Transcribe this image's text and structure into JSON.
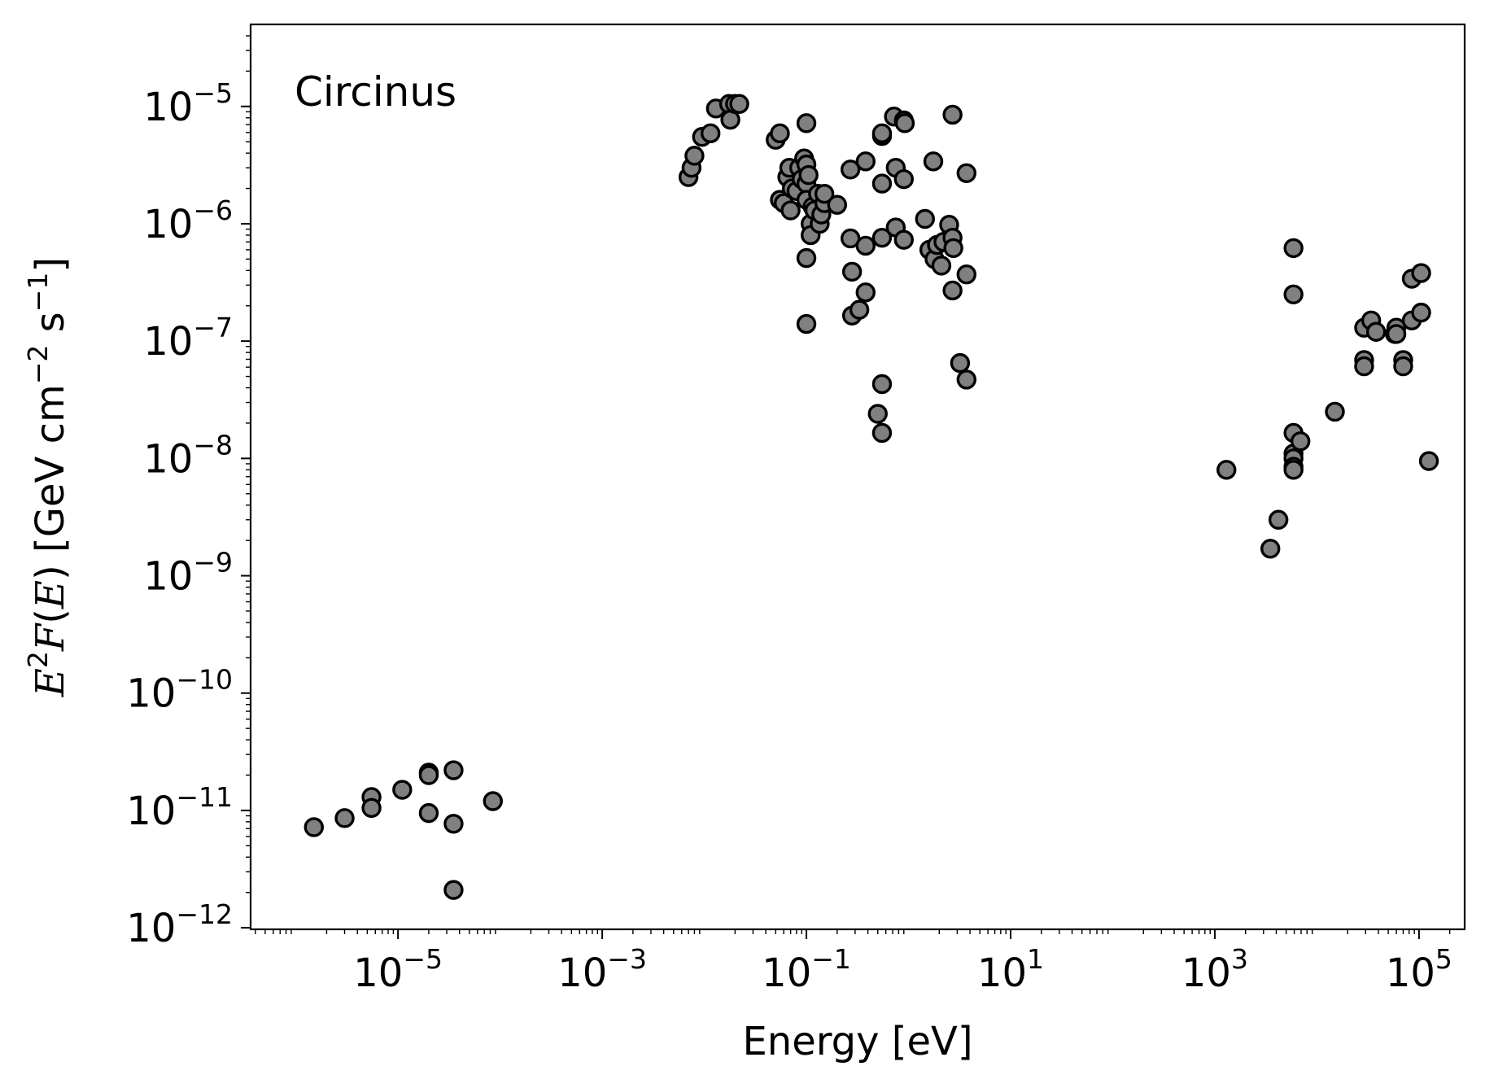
{
  "chart_data": {
    "type": "scatter",
    "annotation": "Circinus",
    "xlabel": "Energy [eV]",
    "ylabel": "E²F(E) [GeV cm⁻² s⁻¹]",
    "xscale": "log",
    "yscale": "log",
    "xlim": [
      3.6e-07,
      280000.0
    ],
    "ylim": [
      9.7e-13,
      5e-05
    ],
    "xticks": [
      {
        "base": "10",
        "exp": "−5",
        "value": 1e-05
      },
      {
        "base": "10",
        "exp": "−3",
        "value": 0.001
      },
      {
        "base": "10",
        "exp": "−1",
        "value": 0.1
      },
      {
        "base": "10",
        "exp": "1",
        "value": 10.0
      },
      {
        "base": "10",
        "exp": "3",
        "value": 1000.0
      },
      {
        "base": "10",
        "exp": "5",
        "value": 100000.0
      }
    ],
    "yticks": [
      {
        "base": "10",
        "exp": "−12",
        "value": 1e-12
      },
      {
        "base": "10",
        "exp": "−11",
        "value": 1e-11
      },
      {
        "base": "10",
        "exp": "−10",
        "value": 1e-10
      },
      {
        "base": "10",
        "exp": "−9",
        "value": 1e-09
      },
      {
        "base": "10",
        "exp": "−8",
        "value": 1e-08
      },
      {
        "base": "10",
        "exp": "−7",
        "value": 1e-07
      },
      {
        "base": "10",
        "exp": "−6",
        "value": 1e-06
      },
      {
        "base": "10",
        "exp": "−5",
        "value": 1e-05
      }
    ],
    "grid": false,
    "marker_color": "#808080",
    "marker_edge": "#000000",
    "points": [
      [
        1.5e-06,
        7.2e-12
      ],
      [
        3e-06,
        8.6e-12
      ],
      [
        5.5e-06,
        1.3e-11
      ],
      [
        5.5e-06,
        1.05e-11
      ],
      [
        1.1e-05,
        1.5e-11
      ],
      [
        2e-05,
        2.1e-11
      ],
      [
        2e-05,
        2e-11
      ],
      [
        2e-05,
        9.5e-12
      ],
      [
        3.5e-05,
        2.2e-11
      ],
      [
        3.5e-05,
        7.7e-12
      ],
      [
        3.5e-05,
        2.1e-12
      ],
      [
        8.5e-05,
        1.2e-11
      ],
      [
        0.007,
        2.5e-06
      ],
      [
        0.0075,
        3e-06
      ],
      [
        0.008,
        3.8e-06
      ],
      [
        0.0095,
        5.5e-06
      ],
      [
        0.0115,
        5.9e-06
      ],
      [
        0.013,
        9.6e-06
      ],
      [
        0.0175,
        1.05e-05
      ],
      [
        0.018,
        7.7e-06
      ],
      [
        0.02,
        1.05e-05
      ],
      [
        0.022,
        1.05e-05
      ],
      [
        0.05,
        5.2e-06
      ],
      [
        0.055,
        5.9e-06
      ],
      [
        0.055,
        1.6e-06
      ],
      [
        0.06,
        1.5e-06
      ],
      [
        0.065,
        2.5e-06
      ],
      [
        0.068,
        3e-06
      ],
      [
        0.07,
        1.3e-06
      ],
      [
        0.072,
        2e-06
      ],
      [
        0.08,
        1.9e-06
      ],
      [
        0.085,
        3e-06
      ],
      [
        0.09,
        2.4e-06
      ],
      [
        0.095,
        3.6e-06
      ],
      [
        0.1,
        3.2e-06
      ],
      [
        0.1,
        2.2e-06
      ],
      [
        0.1,
        7.2e-06
      ],
      [
        0.1,
        1.6e-06
      ],
      [
        0.1,
        5.1e-07
      ],
      [
        0.1,
        1.4e-07
      ],
      [
        0.105,
        2.6e-06
      ],
      [
        0.11,
        1e-06
      ],
      [
        0.11,
        8e-07
      ],
      [
        0.115,
        1.4e-06
      ],
      [
        0.12,
        1.3e-06
      ],
      [
        0.13,
        1.8e-06
      ],
      [
        0.135,
        1e-06
      ],
      [
        0.14,
        1.2e-06
      ],
      [
        0.15,
        1.5e-06
      ],
      [
        0.15,
        1.8e-06
      ],
      [
        0.2,
        1.45e-06
      ],
      [
        0.27,
        2.9e-06
      ],
      [
        0.27,
        7.5e-07
      ],
      [
        0.28,
        3.9e-07
      ],
      [
        0.28,
        1.65e-07
      ],
      [
        0.33,
        1.85e-07
      ],
      [
        0.38,
        3.4e-06
      ],
      [
        0.38,
        6.5e-07
      ],
      [
        0.38,
        2.6e-07
      ],
      [
        0.5,
        2.4e-08
      ],
      [
        0.55,
        4.3e-08
      ],
      [
        0.55,
        1.65e-08
      ],
      [
        0.55,
        5.6e-06
      ],
      [
        0.55,
        5.9e-06
      ],
      [
        0.55,
        2.2e-06
      ],
      [
        0.55,
        7.6e-07
      ],
      [
        0.72,
        8.2e-06
      ],
      [
        0.75,
        3e-06
      ],
      [
        0.75,
        9.3e-07
      ],
      [
        0.9,
        7.6e-06
      ],
      [
        0.92,
        7.2e-06
      ],
      [
        0.9,
        2.4e-06
      ],
      [
        0.9,
        7.3e-07
      ],
      [
        1.45,
        1.1e-06
      ],
      [
        1.6,
        6e-07
      ],
      [
        1.75,
        3.4e-06
      ],
      [
        1.8,
        5e-07
      ],
      [
        1.9,
        6.6e-07
      ],
      [
        2.1,
        4.4e-07
      ],
      [
        2.2,
        7e-07
      ],
      [
        2.5,
        9.8e-07
      ],
      [
        2.7,
        8.5e-06
      ],
      [
        2.7,
        7.6e-07
      ],
      [
        2.75,
        6.2e-07
      ],
      [
        2.7,
        2.7e-07
      ],
      [
        3.2,
        6.5e-08
      ],
      [
        3.7,
        4.7e-08
      ],
      [
        3.7,
        2.7e-06
      ],
      [
        3.7,
        3.7e-07
      ],
      [
        1300,
        8e-09
      ],
      [
        3500,
        1.7e-09
      ],
      [
        4200,
        3e-09
      ],
      [
        5900,
        6.2e-07
      ],
      [
        5900,
        2.5e-07
      ],
      [
        5900,
        1.65e-08
      ],
      [
        5900,
        1.1e-08
      ],
      [
        5900,
        1e-08
      ],
      [
        5900,
        8.5e-09
      ],
      [
        5900,
        8e-09
      ],
      [
        6900,
        1.4e-08
      ],
      [
        15000,
        2.5e-08
      ],
      [
        29000,
        1.3e-07
      ],
      [
        29000,
        6.9e-08
      ],
      [
        29000,
        6.1e-08
      ],
      [
        34000,
        1.5e-07
      ],
      [
        38000,
        1.2e-07
      ],
      [
        58000,
        1.15e-07
      ],
      [
        60000,
        1.3e-07
      ],
      [
        60000,
        1.15e-07
      ],
      [
        70000,
        6.9e-08
      ],
      [
        70000,
        6.1e-08
      ],
      [
        85000,
        3.4e-07
      ],
      [
        85000,
        1.5e-07
      ],
      [
        105000,
        3.8e-07
      ],
      [
        105000,
        1.75e-07
      ],
      [
        125000,
        9.5e-09
      ]
    ]
  }
}
